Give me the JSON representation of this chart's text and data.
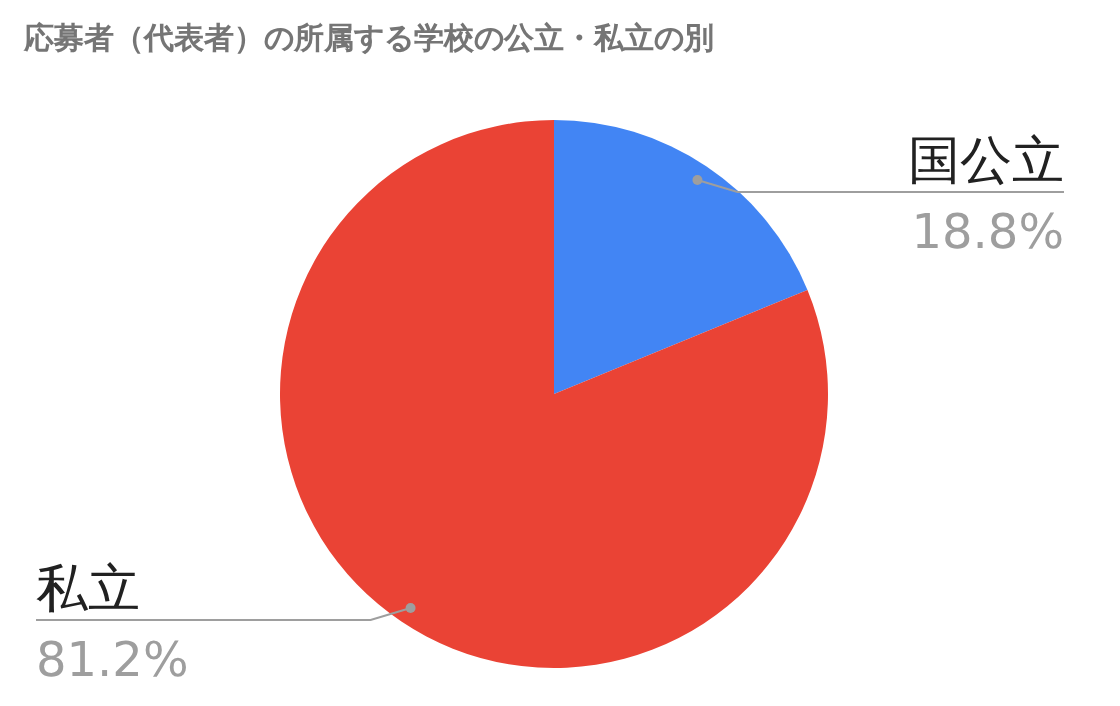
{
  "chart_data": {
    "type": "pie",
    "title": "応募者（代表者）の所属する学校の公立・私立の別",
    "categories": [
      "国公立",
      "私立"
    ],
    "values": [
      18.8,
      81.2
    ],
    "colors": [
      "#4285f4",
      "#ea4335"
    ],
    "value_labels": [
      "18.8%",
      "81.2%"
    ]
  }
}
